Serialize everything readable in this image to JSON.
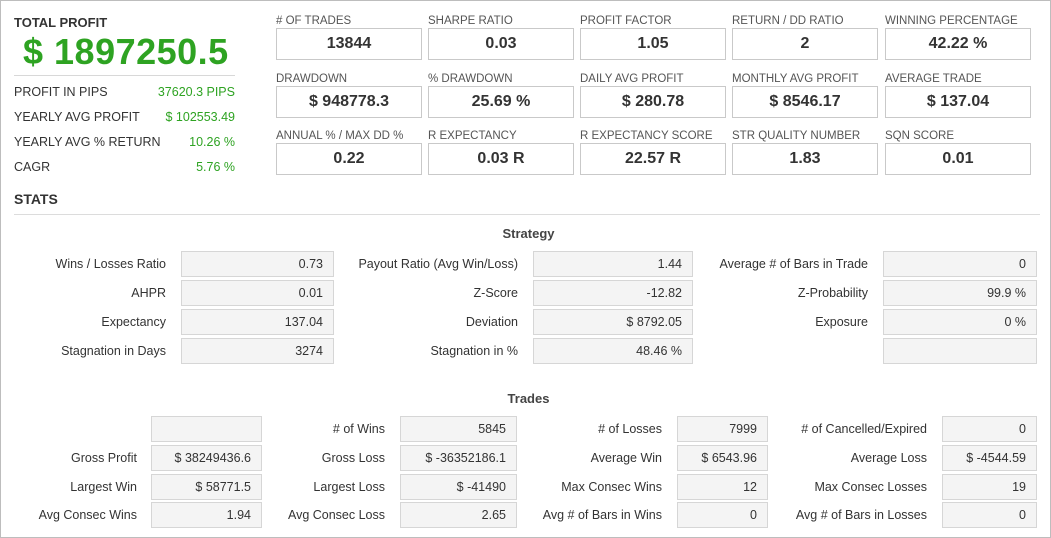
{
  "total_profit": {
    "title": "TOTAL PROFIT",
    "value": "$ 1897250.5",
    "rows": [
      {
        "label": "PROFIT IN PIPS",
        "value": "37620.3 PIPS"
      },
      {
        "label": "YEARLY AVG PROFIT",
        "value": "$ 102553.49"
      },
      {
        "label": "YEARLY AVG % RETURN",
        "value": "10.26 %"
      },
      {
        "label": "CAGR",
        "value": "5.76 %"
      }
    ]
  },
  "metrics": [
    {
      "label": "# OF TRADES",
      "value": "13844"
    },
    {
      "label": "SHARPE RATIO",
      "value": "0.03"
    },
    {
      "label": "PROFIT FACTOR",
      "value": "1.05"
    },
    {
      "label": "RETURN / DD RATIO",
      "value": "2"
    },
    {
      "label": "WINNING PERCENTAGE",
      "value": "42.22 %"
    },
    {
      "label": "DRAWDOWN",
      "value": "$ 948778.3"
    },
    {
      "label": "% DRAWDOWN",
      "value": "25.69 %"
    },
    {
      "label": "DAILY AVG PROFIT",
      "value": "$ 280.78"
    },
    {
      "label": "MONTHLY AVG PROFIT",
      "value": "$ 8546.17"
    },
    {
      "label": "AVERAGE TRADE",
      "value": "$ 137.04"
    },
    {
      "label": "ANNUAL % / MAX DD %",
      "value": "0.22"
    },
    {
      "label": "R EXPECTANCY",
      "value": "0.03 R"
    },
    {
      "label": "R EXPECTANCY SCORE",
      "value": "22.57 R"
    },
    {
      "label": "STR QUALITY NUMBER",
      "value": "1.83"
    },
    {
      "label": "SQN SCORE",
      "value": "0.01"
    }
  ],
  "stats": {
    "title": "STATS",
    "strategy": {
      "title": "Strategy",
      "rows": [
        [
          {
            "label": "Wins / Losses Ratio",
            "value": "0.73"
          },
          {
            "label": "Payout Ratio (Avg Win/Loss)",
            "value": "1.44"
          },
          {
            "label": "Average # of Bars in Trade",
            "value": "0"
          }
        ],
        [
          {
            "label": "AHPR",
            "value": "0.01"
          },
          {
            "label": "Z-Score",
            "value": "-12.82"
          },
          {
            "label": "Z-Probability",
            "value": "99.9 %"
          }
        ],
        [
          {
            "label": "Expectancy",
            "value": "137.04"
          },
          {
            "label": "Deviation",
            "value": "$ 8792.05"
          },
          {
            "label": "Exposure",
            "value": "0 %"
          }
        ],
        [
          {
            "label": "Stagnation in Days",
            "value": "3274"
          },
          {
            "label": "Stagnation in %",
            "value": "48.46 %"
          },
          {
            "label": "",
            "value": ""
          }
        ]
      ]
    },
    "trades": {
      "title": "Trades",
      "rows": [
        [
          {
            "label": "",
            "value": ""
          },
          {
            "label": "# of Wins",
            "value": "5845"
          },
          {
            "label": "# of Losses",
            "value": "7999"
          },
          {
            "label": "# of Cancelled/Expired",
            "value": "0"
          }
        ],
        [
          {
            "label": "Gross Profit",
            "value": "$ 38249436.6"
          },
          {
            "label": "Gross Loss",
            "value": "$ -36352186.1"
          },
          {
            "label": "Average Win",
            "value": "$ 6543.96"
          },
          {
            "label": "Average Loss",
            "value": "$ -4544.59"
          }
        ],
        [
          {
            "label": "Largest Win",
            "value": "$ 58771.5"
          },
          {
            "label": "Largest Loss",
            "value": "$ -41490"
          },
          {
            "label": "Max Consec Wins",
            "value": "12"
          },
          {
            "label": "Max Consec Losses",
            "value": "19"
          }
        ],
        [
          {
            "label": "Avg Consec Wins",
            "value": "1.94"
          },
          {
            "label": "Avg Consec Loss",
            "value": "2.65"
          },
          {
            "label": "Avg # of Bars in Wins",
            "value": "0"
          },
          {
            "label": "Avg # of Bars in Losses",
            "value": "0"
          }
        ]
      ]
    }
  }
}
